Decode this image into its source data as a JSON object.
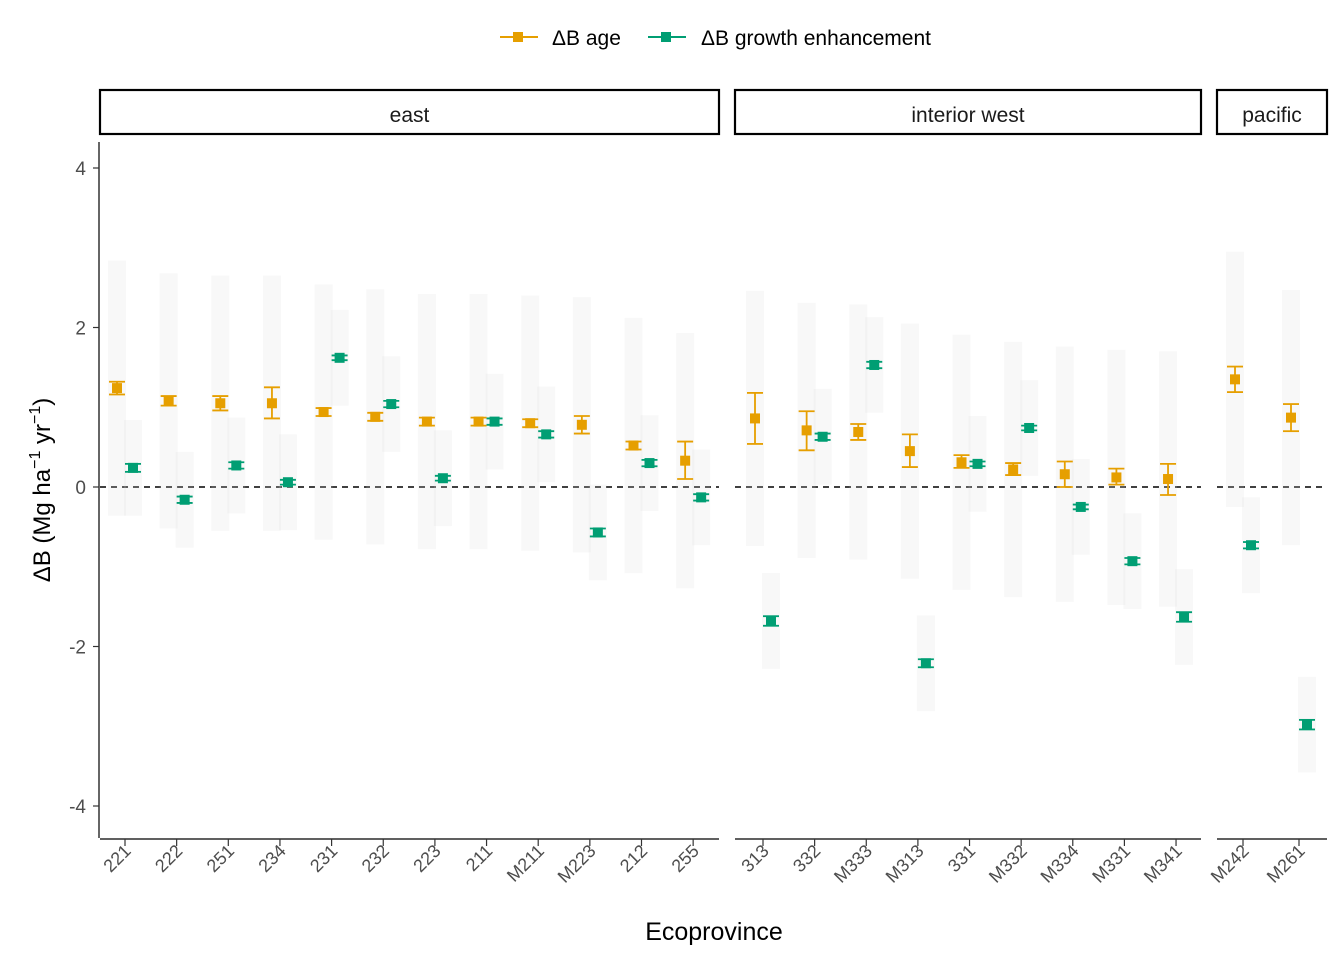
{
  "chart_data": {
    "type": "scatter",
    "title": "",
    "xlabel": "Ecoprovince",
    "ylabel_main": "ΔB (Mg ha",
    "ylabel_sup1": "−1",
    "ylabel_mid": " yr",
    "ylabel_sup2": "−1",
    "ylabel_end": ")",
    "ylim": [
      -4.4,
      4.4
    ],
    "y_ticks": [
      4,
      2,
      0,
      -2,
      -4
    ],
    "y_tick_labels": [
      "4",
      "2",
      "0",
      "-2",
      "-4"
    ],
    "reference_line_y": 0,
    "legend_position": "top",
    "legend": [
      {
        "label": "ΔB age",
        "color": "#E69F00"
      },
      {
        "label": "ΔB growth enhancement",
        "color": "#009E73"
      }
    ],
    "panels": [
      {
        "name": "east",
        "categories": [
          "221",
          "222",
          "251",
          "234",
          "231",
          "232",
          "223",
          "211",
          "M211",
          "M223",
          "212",
          "255"
        ],
        "series": [
          {
            "name": "ΔB age",
            "color": "#E69F00",
            "values": [
              1.24,
              1.08,
              1.05,
              1.05,
              0.94,
              0.88,
              0.82,
              0.82,
              0.8,
              0.78,
              0.52,
              0.33
            ],
            "lower": [
              1.16,
              1.02,
              0.96,
              0.86,
              0.89,
              0.83,
              0.77,
              0.77,
              0.75,
              0.67,
              0.47,
              0.1
            ],
            "upper": [
              1.32,
              1.14,
              1.14,
              1.25,
              0.99,
              0.93,
              0.87,
              0.87,
              0.85,
              0.89,
              0.57,
              0.57
            ]
          },
          {
            "name": "ΔB growth enhancement",
            "color": "#009E73",
            "values": [
              0.24,
              -0.16,
              0.27,
              0.06,
              1.62,
              1.04,
              0.11,
              0.82,
              0.66,
              -0.57,
              0.3,
              -0.13
            ],
            "lower": [
              0.19,
              -0.2,
              0.23,
              0.03,
              1.59,
              1.0,
              0.08,
              0.78,
              0.62,
              -0.62,
              0.26,
              -0.17
            ],
            "upper": [
              0.29,
              -0.12,
              0.31,
              0.09,
              1.65,
              1.08,
              0.14,
              0.86,
              0.7,
              -0.52,
              0.34,
              -0.09
            ]
          }
        ]
      },
      {
        "name": "interior west",
        "categories": [
          "313",
          "332",
          "M333",
          "M313",
          "331",
          "M332",
          "M334",
          "M331",
          "M341"
        ],
        "series": [
          {
            "name": "ΔB age",
            "color": "#E69F00",
            "values": [
              0.86,
              0.71,
              0.69,
              0.45,
              0.31,
              0.22,
              0.16,
              0.12,
              0.1
            ],
            "lower": [
              0.54,
              0.46,
              0.59,
              0.25,
              0.24,
              0.15,
              0.0,
              0.03,
              -0.1
            ],
            "upper": [
              1.18,
              0.95,
              0.79,
              0.66,
              0.4,
              0.3,
              0.32,
              0.23,
              0.29
            ]
          },
          {
            "name": "ΔB growth enhancement",
            "color": "#009E73",
            "values": [
              -1.68,
              0.63,
              1.53,
              -2.21,
              0.29,
              0.74,
              -0.25,
              -0.93,
              -1.63
            ],
            "lower": [
              -1.74,
              0.59,
              1.49,
              -2.26,
              0.26,
              0.71,
              -0.28,
              -0.97,
              -1.69
            ],
            "upper": [
              -1.62,
              0.67,
              1.57,
              -2.16,
              0.32,
              0.77,
              -0.22,
              -0.89,
              -1.57
            ]
          }
        ]
      },
      {
        "name": "pacific",
        "categories": [
          "M242",
          "M261"
        ],
        "series": [
          {
            "name": "ΔB age",
            "color": "#E69F00",
            "values": [
              1.35,
              0.87
            ],
            "lower": [
              1.19,
              0.7
            ],
            "upper": [
              1.51,
              1.04
            ]
          },
          {
            "name": "ΔB growth enhancement",
            "color": "#009E73",
            "values": [
              -0.73,
              -2.98
            ],
            "lower": [
              -0.77,
              -3.04
            ],
            "upper": [
              -0.69,
              -2.92
            ]
          }
        ]
      }
    ]
  }
}
